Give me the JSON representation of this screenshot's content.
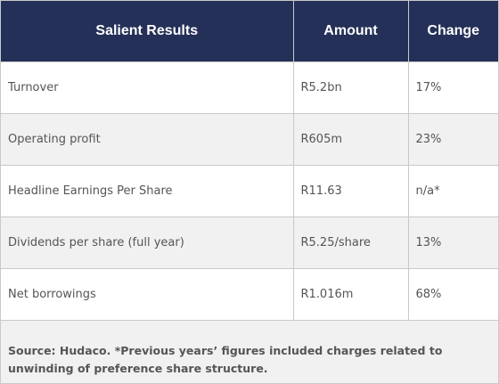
{
  "table": {
    "headers": [
      "Salient Results",
      "Amount",
      "Change"
    ],
    "rows": [
      {
        "label": "Turnover",
        "amount": "R5.2bn",
        "change": "17%"
      },
      {
        "label": "Operating profit",
        "amount": "R605m",
        "change": "23%"
      },
      {
        "label": "Headline Earnings Per Share",
        "amount": "R11.63",
        "change": "n/a*"
      },
      {
        "label": "Dividends per share (full year)",
        "amount": "R5.25/share",
        "change": "13%"
      },
      {
        "label": "Net borrowings",
        "amount": "R1.016m",
        "change": "68%"
      }
    ]
  },
  "footer": {
    "source_note": "Source: Hudaco. *Previous years’ figures included charges related to unwinding of preference share structure."
  },
  "colors": {
    "header_bg": "#243058",
    "header_text": "#ffffff",
    "row_alt_bg": "#f1f1f1",
    "body_text": "#555555",
    "border": "#c9c9c9"
  }
}
